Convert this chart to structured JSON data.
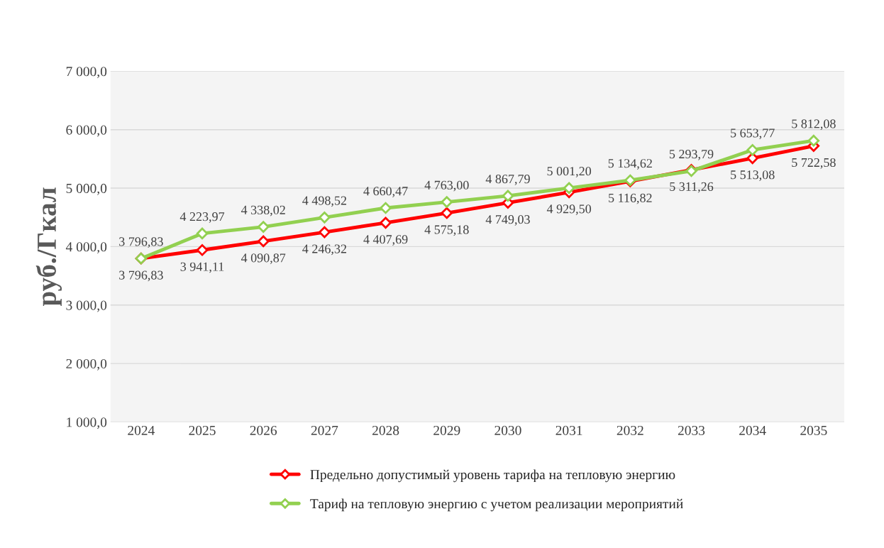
{
  "chart_data": {
    "type": "line",
    "ylabel": "руб./Гкал",
    "categories": [
      "2024",
      "2025",
      "2026",
      "2027",
      "2028",
      "2029",
      "2030",
      "2031",
      "2032",
      "2033",
      "2034",
      "2035"
    ],
    "series": [
      {
        "name": "Предельно допустимый уровень тарифа на тепловую энергию",
        "color": "#ff0000",
        "values": [
          3796.83,
          3941.11,
          4090.87,
          4246.32,
          4407.69,
          4575.18,
          4749.03,
          4929.5,
          5116.82,
          5311.26,
          5513.08,
          5722.58
        ],
        "value_labels": [
          "3 796,83",
          "3 941,11",
          "4 090,87",
          "4 246,32",
          "4 407,69",
          "4 575,18",
          "4 749,03",
          "4 929,50",
          "5 116,82",
          "5 311,26",
          "5 513,08",
          "5 722,58"
        ]
      },
      {
        "name": "Тариф на тепловую энергию с учетом реализации мероприятий",
        "color": "#92d050",
        "values": [
          3796.83,
          4223.97,
          4338.02,
          4498.52,
          4660.47,
          4763.0,
          4867.79,
          5001.2,
          5134.62,
          5293.79,
          5653.77,
          5812.08
        ],
        "value_labels": [
          "3 796,83",
          "4 223,97",
          "4 338,02",
          "4 498,52",
          "4 660,47",
          "4 763,00",
          "4 867,79",
          "5 001,20",
          "5 134,62",
          "5 293,79",
          "5 653,77",
          "5 812,08"
        ]
      }
    ],
    "ylim": [
      1000,
      7000
    ],
    "yticks": [
      {
        "value": 1000,
        "label": "1 000,0"
      },
      {
        "value": 2000,
        "label": "2 000,0"
      },
      {
        "value": 3000,
        "label": "3 000,0"
      },
      {
        "value": 4000,
        "label": "4 000,0"
      },
      {
        "value": 5000,
        "label": "5 000,0"
      },
      {
        "value": 6000,
        "label": "6 000,0"
      },
      {
        "value": 7000,
        "label": "7 000,0"
      }
    ],
    "grid": "y",
    "legend": "bottom",
    "marker": "diamond",
    "line_style": "solid"
  }
}
